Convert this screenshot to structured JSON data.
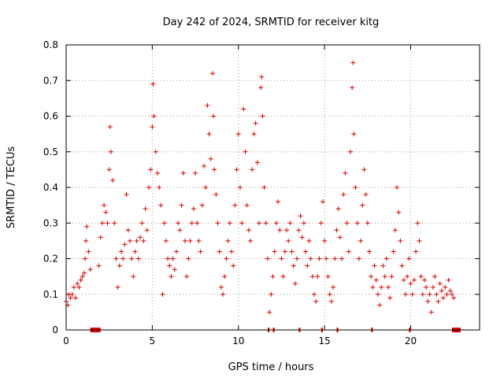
{
  "chart_data": {
    "type": "scatter",
    "title": "Day 242 of 2024, SRMTID for receiver kitg",
    "xlabel": "GPS time / hours",
    "ylabel": "SRMTID / TECUs",
    "xlim": [
      0,
      24
    ],
    "ylim": [
      0,
      0.8
    ],
    "xticks": [
      0,
      5,
      10,
      15,
      20
    ],
    "xtick_labels": [
      "0",
      "5",
      "10",
      "15",
      "20"
    ],
    "yticks": [
      0,
      0.1,
      0.2,
      0.3,
      0.4,
      0.5,
      0.6,
      0.7,
      0.8
    ],
    "ytick_labels": [
      "0",
      "0.1",
      "0.2",
      "0.3",
      "0.4",
      "0.5",
      "0.6",
      "0.7",
      "0.8"
    ],
    "grid": true,
    "marker": "+",
    "marker_color": "#e00000",
    "series": [
      {
        "name": "SRMTID",
        "points": [
          [
            0.0,
            0.08
          ],
          [
            0.1,
            0.07
          ],
          [
            0.15,
            0.1
          ],
          [
            0.25,
            0.09
          ],
          [
            0.35,
            0.1
          ],
          [
            0.45,
            0.12
          ],
          [
            0.55,
            0.09
          ],
          [
            0.65,
            0.13
          ],
          [
            0.75,
            0.12
          ],
          [
            0.85,
            0.14
          ],
          [
            0.95,
            0.15
          ],
          [
            1.05,
            0.16
          ],
          [
            1.1,
            0.2
          ],
          [
            1.15,
            0.25
          ],
          [
            1.2,
            0.29
          ],
          [
            1.3,
            0.22
          ],
          [
            1.4,
            0.17
          ],
          [
            1.9,
            0.18
          ],
          [
            2.0,
            0.26
          ],
          [
            2.1,
            0.3
          ],
          [
            2.2,
            0.35
          ],
          [
            2.3,
            0.33
          ],
          [
            2.4,
            0.3
          ],
          [
            2.5,
            0.45
          ],
          [
            2.55,
            0.57
          ],
          [
            2.6,
            0.5
          ],
          [
            2.7,
            0.42
          ],
          [
            2.8,
            0.3
          ],
          [
            2.9,
            0.2
          ],
          [
            3.0,
            0.12
          ],
          [
            3.1,
            0.18
          ],
          [
            3.2,
            0.22
          ],
          [
            3.3,
            0.2
          ],
          [
            3.4,
            0.24
          ],
          [
            3.5,
            0.38
          ],
          [
            3.6,
            0.28
          ],
          [
            3.7,
            0.25
          ],
          [
            3.8,
            0.2
          ],
          [
            3.9,
            0.15
          ],
          [
            4.0,
            0.22
          ],
          [
            4.1,
            0.25
          ],
          [
            4.2,
            0.2
          ],
          [
            4.3,
            0.26
          ],
          [
            4.4,
            0.3
          ],
          [
            4.5,
            0.25
          ],
          [
            4.6,
            0.34
          ],
          [
            4.7,
            0.28
          ],
          [
            4.8,
            0.4
          ],
          [
            4.9,
            0.45
          ],
          [
            5.0,
            0.57
          ],
          [
            5.05,
            0.69
          ],
          [
            5.1,
            0.6
          ],
          [
            5.2,
            0.5
          ],
          [
            5.3,
            0.44
          ],
          [
            5.4,
            0.4
          ],
          [
            5.5,
            0.35
          ],
          [
            5.6,
            0.1
          ],
          [
            5.7,
            0.3
          ],
          [
            5.8,
            0.25
          ],
          [
            5.9,
            0.2
          ],
          [
            6.0,
            0.18
          ],
          [
            6.1,
            0.15
          ],
          [
            6.2,
            0.2
          ],
          [
            6.3,
            0.17
          ],
          [
            6.4,
            0.22
          ],
          [
            6.5,
            0.3
          ],
          [
            6.6,
            0.28
          ],
          [
            6.7,
            0.35
          ],
          [
            6.8,
            0.44
          ],
          [
            6.9,
            0.25
          ],
          [
            7.0,
            0.15
          ],
          [
            7.1,
            0.2
          ],
          [
            7.2,
            0.25
          ],
          [
            7.3,
            0.3
          ],
          [
            7.4,
            0.34
          ],
          [
            7.5,
            0.44
          ],
          [
            7.6,
            0.3
          ],
          [
            7.7,
            0.25
          ],
          [
            7.8,
            0.22
          ],
          [
            7.9,
            0.35
          ],
          [
            8.0,
            0.46
          ],
          [
            8.1,
            0.4
          ],
          [
            8.2,
            0.63
          ],
          [
            8.3,
            0.55
          ],
          [
            8.4,
            0.48
          ],
          [
            8.5,
            0.72
          ],
          [
            8.55,
            0.6
          ],
          [
            8.6,
            0.45
          ],
          [
            8.7,
            0.38
          ],
          [
            8.8,
            0.3
          ],
          [
            8.9,
            0.22
          ],
          [
            9.0,
            0.12
          ],
          [
            9.1,
            0.1
          ],
          [
            9.2,
            0.15
          ],
          [
            9.3,
            0.2
          ],
          [
            9.4,
            0.25
          ],
          [
            9.5,
            0.3
          ],
          [
            9.6,
            0.22
          ],
          [
            9.7,
            0.18
          ],
          [
            9.8,
            0.35
          ],
          [
            9.9,
            0.45
          ],
          [
            10.0,
            0.55
          ],
          [
            10.1,
            0.4
          ],
          [
            10.2,
            0.3
          ],
          [
            10.3,
            0.62
          ],
          [
            10.4,
            0.5
          ],
          [
            10.5,
            0.35
          ],
          [
            10.6,
            0.28
          ],
          [
            10.7,
            0.25
          ],
          [
            10.8,
            0.45
          ],
          [
            10.9,
            0.55
          ],
          [
            11.0,
            0.58
          ],
          [
            11.1,
            0.47
          ],
          [
            11.2,
            0.3
          ],
          [
            11.3,
            0.68
          ],
          [
            11.35,
            0.71
          ],
          [
            11.4,
            0.6
          ],
          [
            11.5,
            0.4
          ],
          [
            11.6,
            0.3
          ],
          [
            11.7,
            0.2
          ],
          [
            11.8,
            0.05
          ],
          [
            11.9,
            0.1
          ],
          [
            12.0,
            0.15
          ],
          [
            12.1,
            0.22
          ],
          [
            12.2,
            0.3
          ],
          [
            12.3,
            0.36
          ],
          [
            12.4,
            0.28
          ],
          [
            12.5,
            0.2
          ],
          [
            12.6,
            0.15
          ],
          [
            12.7,
            0.22
          ],
          [
            12.8,
            0.28
          ],
          [
            12.9,
            0.25
          ],
          [
            13.0,
            0.3
          ],
          [
            13.1,
            0.22
          ],
          [
            13.2,
            0.18
          ],
          [
            13.3,
            0.13
          ],
          [
            13.4,
            0.2
          ],
          [
            13.5,
            0.28
          ],
          [
            13.6,
            0.32
          ],
          [
            13.7,
            0.26
          ],
          [
            13.8,
            0.3
          ],
          [
            13.9,
            0.22
          ],
          [
            14.0,
            0.18
          ],
          [
            14.1,
            0.25
          ],
          [
            14.2,
            0.2
          ],
          [
            14.3,
            0.15
          ],
          [
            14.4,
            0.1
          ],
          [
            14.5,
            0.08
          ],
          [
            14.6,
            0.15
          ],
          [
            14.7,
            0.2
          ],
          [
            14.8,
            0.3
          ],
          [
            14.9,
            0.36
          ],
          [
            15.0,
            0.25
          ],
          [
            15.1,
            0.2
          ],
          [
            15.2,
            0.15
          ],
          [
            15.3,
            0.1
          ],
          [
            15.4,
            0.08
          ],
          [
            15.5,
            0.12
          ],
          [
            15.6,
            0.2
          ],
          [
            15.7,
            0.28
          ],
          [
            15.8,
            0.34
          ],
          [
            15.9,
            0.26
          ],
          [
            16.0,
            0.2
          ],
          [
            16.1,
            0.38
          ],
          [
            16.2,
            0.44
          ],
          [
            16.3,
            0.3
          ],
          [
            16.4,
            0.22
          ],
          [
            16.5,
            0.5
          ],
          [
            16.6,
            0.68
          ],
          [
            16.65,
            0.75
          ],
          [
            16.7,
            0.55
          ],
          [
            16.8,
            0.4
          ],
          [
            16.9,
            0.3
          ],
          [
            17.0,
            0.2
          ],
          [
            17.1,
            0.25
          ],
          [
            17.2,
            0.35
          ],
          [
            17.3,
            0.45
          ],
          [
            17.4,
            0.38
          ],
          [
            17.5,
            0.3
          ],
          [
            17.6,
            0.22
          ],
          [
            17.7,
            0.15
          ],
          [
            17.8,
            0.12
          ],
          [
            17.9,
            0.18
          ],
          [
            18.0,
            0.14
          ],
          [
            18.1,
            0.1
          ],
          [
            18.2,
            0.07
          ],
          [
            18.3,
            0.12
          ],
          [
            18.4,
            0.18
          ],
          [
            18.5,
            0.15
          ],
          [
            18.6,
            0.2
          ],
          [
            18.7,
            0.12
          ],
          [
            18.8,
            0.09
          ],
          [
            18.9,
            0.15
          ],
          [
            19.0,
            0.22
          ],
          [
            19.1,
            0.28
          ],
          [
            19.2,
            0.4
          ],
          [
            19.3,
            0.33
          ],
          [
            19.4,
            0.25
          ],
          [
            19.5,
            0.18
          ],
          [
            19.6,
            0.14
          ],
          [
            19.7,
            0.1
          ],
          [
            19.8,
            0.15
          ],
          [
            19.9,
            0.2
          ],
          [
            20.0,
            0.13
          ],
          [
            20.1,
            0.1
          ],
          [
            20.2,
            0.14
          ],
          [
            20.3,
            0.22
          ],
          [
            20.4,
            0.3
          ],
          [
            20.5,
            0.25
          ],
          [
            20.6,
            0.15
          ],
          [
            20.7,
            0.1
          ],
          [
            20.8,
            0.14
          ],
          [
            20.9,
            0.12
          ],
          [
            21.0,
            0.08
          ],
          [
            21.1,
            0.1
          ],
          [
            21.2,
            0.05
          ],
          [
            21.3,
            0.12
          ],
          [
            21.4,
            0.15
          ],
          [
            21.5,
            0.1
          ],
          [
            21.6,
            0.08
          ],
          [
            21.7,
            0.13
          ],
          [
            21.8,
            0.11
          ],
          [
            21.9,
            0.09
          ],
          [
            22.0,
            0.12
          ],
          [
            22.1,
            0.1
          ],
          [
            22.2,
            0.14
          ],
          [
            22.3,
            0.11
          ],
          [
            22.4,
            0.1
          ],
          [
            22.5,
            0.09
          ]
        ]
      }
    ],
    "gap_markers": [
      [
        1.4,
        2.0
      ],
      [
        11.7,
        11.8
      ],
      [
        12.0,
        12.1
      ],
      [
        13.5,
        13.6
      ],
      [
        14.8,
        14.9
      ],
      [
        15.7,
        15.8
      ],
      [
        17.7,
        17.8
      ],
      [
        19.9,
        20.0
      ],
      [
        22.4,
        22.9
      ]
    ]
  }
}
